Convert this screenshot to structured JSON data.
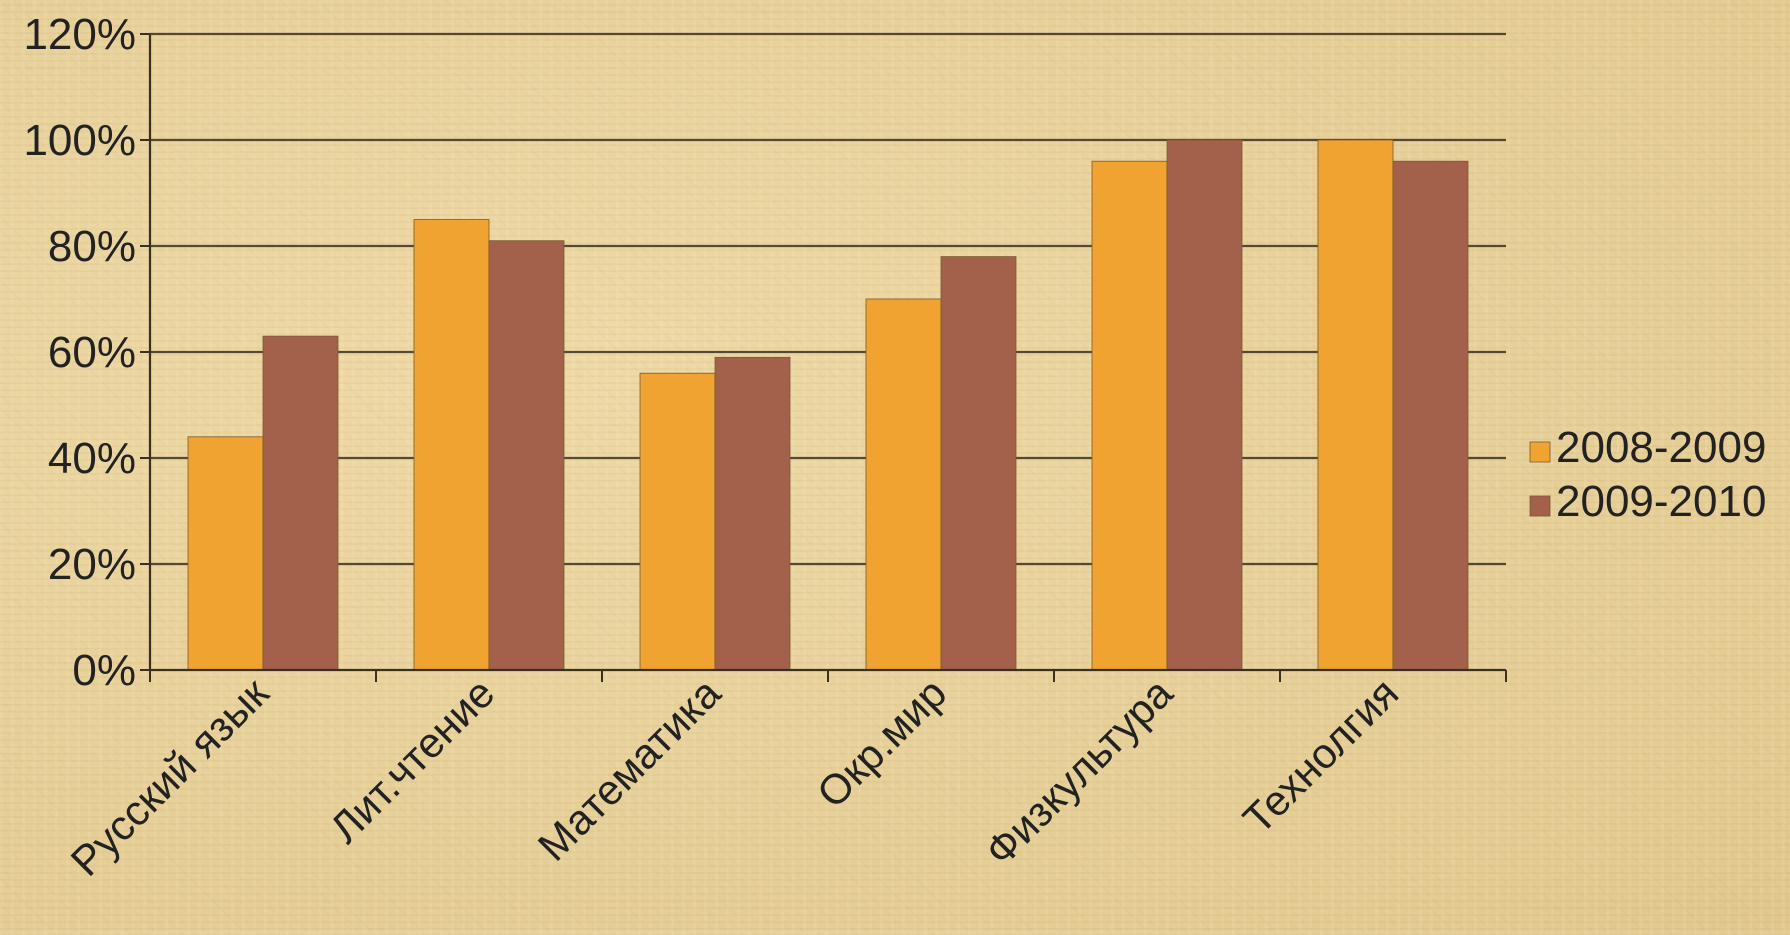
{
  "chart_data": {
    "type": "bar",
    "title": "",
    "xlabel": "",
    "ylabel": "",
    "categories": [
      "Русский язык",
      "Лит.чтение",
      "Математика",
      "Окр.мир",
      "Физкультура",
      "Технолгия"
    ],
    "series": [
      {
        "name": "2008-2009",
        "values": [
          44,
          85,
          56,
          70,
          96,
          100
        ],
        "color": "#f0a330"
      },
      {
        "name": "2009-2010",
        "values": [
          63,
          81,
          59,
          78,
          100,
          96
        ],
        "color": "#a3604a"
      }
    ],
    "ylim": [
      0,
      120
    ],
    "yticks": [
      0,
      20,
      40,
      60,
      80,
      100,
      120
    ],
    "ytick_labels": [
      "0%",
      "20%",
      "40%",
      "60%",
      "80%",
      "100%",
      "120%"
    ],
    "grid": true,
    "legend_position": "right"
  },
  "colors": {
    "gridline": "#3a3020",
    "axis": "#3a3020",
    "text": "#222222",
    "bar_edge": "#7a5a30"
  }
}
